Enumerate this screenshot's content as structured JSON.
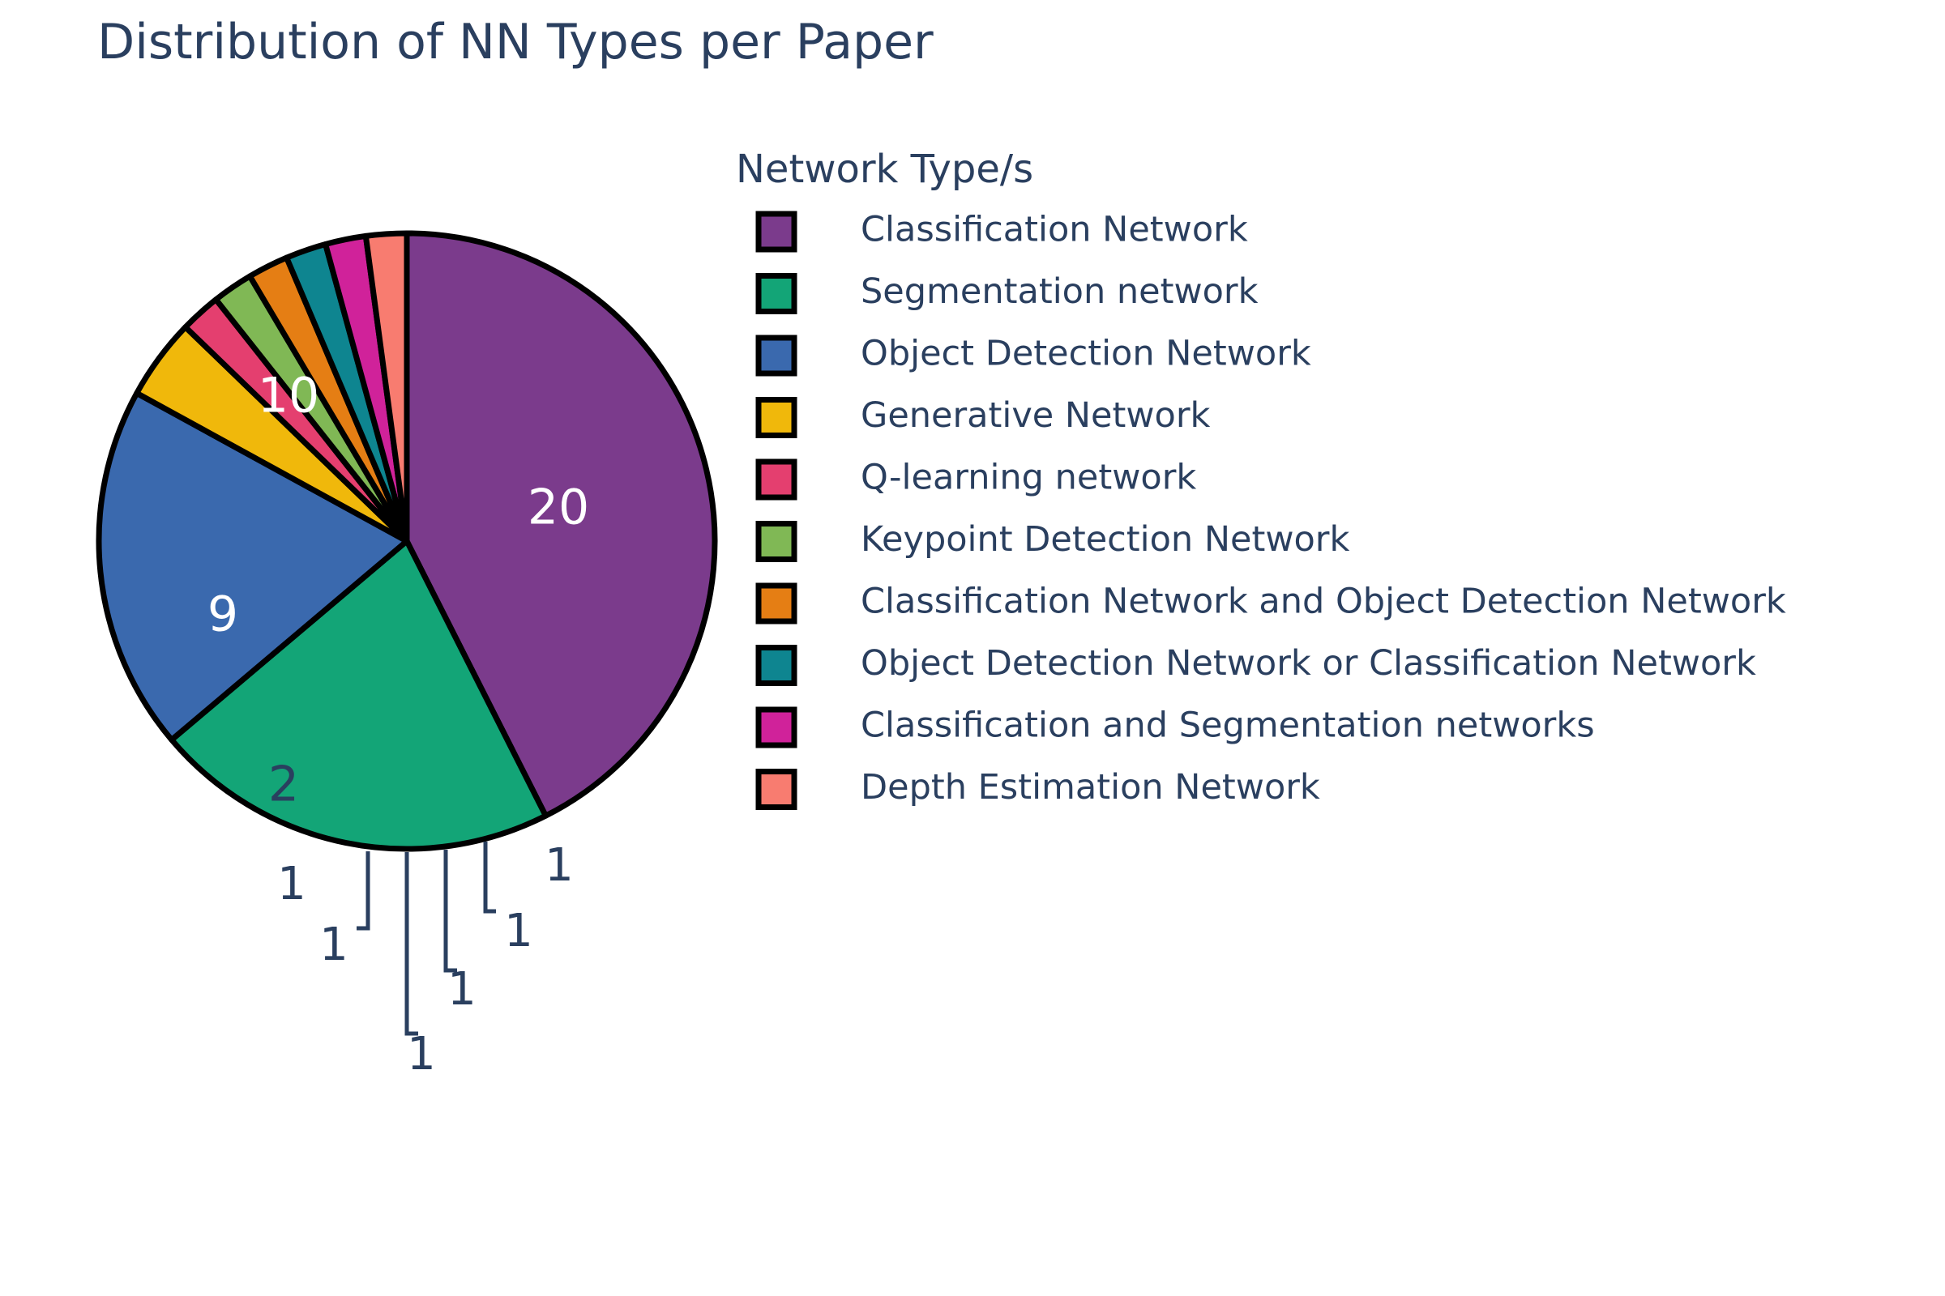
{
  "chart_data": {
    "type": "pie",
    "title": "Distribution of NN Types per Paper",
    "legend": {
      "title": "Network Type/s",
      "placement": "right"
    },
    "slices": [
      {
        "label": "Classification Network",
        "value": 20,
        "color": "#7B3B8C"
      },
      {
        "label": "Segmentation network",
        "value": 10,
        "color": "#13A577"
      },
      {
        "label": "Object Detection Network",
        "value": 9,
        "color": "#3A69AE"
      },
      {
        "label": "Generative Network",
        "value": 2,
        "color": "#F0B80B"
      },
      {
        "label": "Q-learning network",
        "value": 1,
        "color": "#E43F6F"
      },
      {
        "label": "Keypoint Detection Network",
        "value": 1,
        "color": "#80B855"
      },
      {
        "label": "Classification Network and Object Detection Network",
        "value": 1,
        "color": "#E57E14"
      },
      {
        "label": "Object Detection Network or Classification Network",
        "value": 1,
        "color": "#0E8590"
      },
      {
        "label": "Classification and Segmentation networks",
        "value": 1,
        "color": "#D0229A"
      },
      {
        "label": "Depth Estimation Network",
        "value": 1,
        "color": "#F87C70"
      }
    ],
    "text_color": "#2A3F5F",
    "inside_text_color": "#ffffff",
    "slice_border_color": "#000000"
  }
}
